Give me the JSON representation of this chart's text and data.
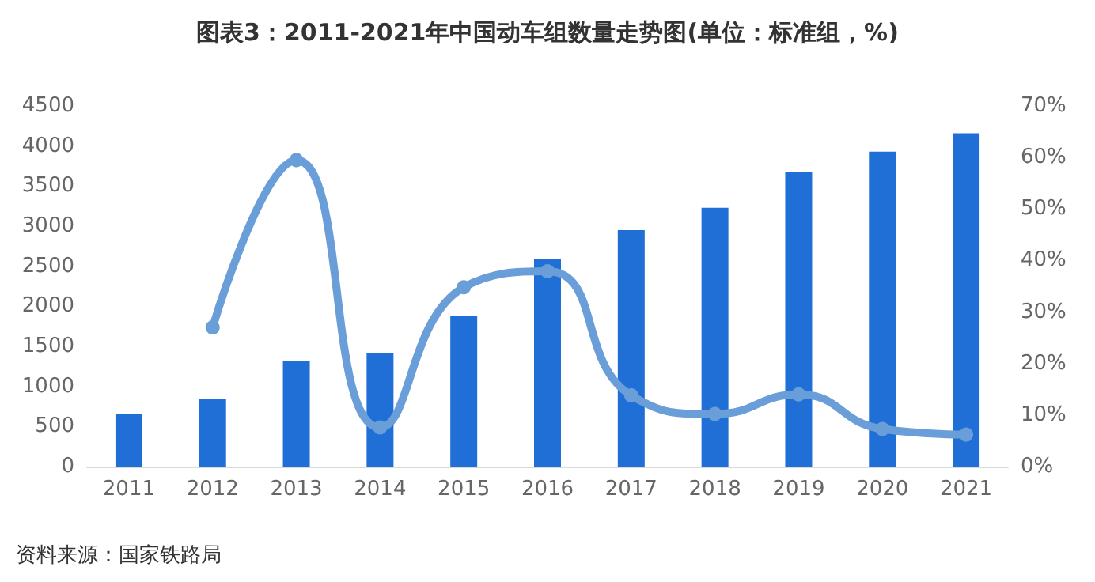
{
  "chart_data": {
    "type": "bar",
    "title": "图表3：2011-2021年中国动车组数量走势图(单位：标准组，%)",
    "categories": [
      "2011",
      "2012",
      "2013",
      "2014",
      "2015",
      "2016",
      "2017",
      "2018",
      "2019",
      "2020",
      "2021"
    ],
    "series": [
      {
        "color": "#1f6fd6",
        "values": [
          660,
          840,
          1320,
          1410,
          1880,
          2590,
          2950,
          3230,
          3680,
          3930,
          4160
        ]
      },
      {
        "type": "line",
        "axis": "y2",
        "color": "#6a9ed8",
        "values": [
          null,
          27,
          59.5,
          7.6,
          34.8,
          37.9,
          13.8,
          10.2,
          14,
          7.3,
          6.2
        ]
      }
    ],
    "ylim": [
      0,
      4500
    ],
    "yticks": [
      0,
      500,
      1000,
      1500,
      2000,
      2500,
      3000,
      3500,
      4000,
      4500
    ],
    "y2lim": [
      0,
      70
    ],
    "y2ticks": [
      {
        "value": 0,
        "label": "0%"
      },
      {
        "value": 10,
        "label": "10%"
      },
      {
        "value": 20,
        "label": "20%"
      },
      {
        "value": 30,
        "label": "30%"
      },
      {
        "value": 40,
        "label": "40%"
      },
      {
        "value": 50,
        "label": "50%"
      },
      {
        "value": 60,
        "label": "60%"
      },
      {
        "value": 70,
        "label": "70%"
      }
    ],
    "marker": "circle",
    "grid": false,
    "annotations": [
      "资料来源：国家铁路局"
    ]
  }
}
